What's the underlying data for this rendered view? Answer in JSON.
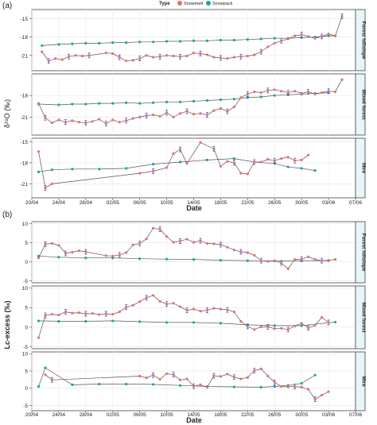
{
  "panel_labels": [
    "(a)",
    "(b)"
  ],
  "legend": {
    "title": "Type",
    "items": [
      {
        "label": "Snowmelt",
        "color": "#e4706e"
      },
      {
        "label": "Snowpack",
        "color": "#1aa3a3"
      }
    ]
  },
  "colors": {
    "line": "#555555",
    "snowmelt": "#e4706e",
    "snowpack": "#1aa3a3",
    "errorbar": "#3b3bd6",
    "strip": "#e6f6f9"
  },
  "chart_data": [
    {
      "type": "line",
      "ylabel": "δ¹⁸O (‰)",
      "xlabel": "Date",
      "x_ticks": [
        "20/04",
        "24/04",
        "28/04",
        "02/05",
        "06/05",
        "10/05",
        "14/05",
        "18/05",
        "22/05",
        "26/05",
        "30/05",
        "03/06",
        "07/06"
      ],
      "grid": true,
      "legend_position": "top",
      "facets": [
        {
          "name": "Forest hillslope",
          "ylim": [
            -23.5,
            -13.5
          ],
          "y_ticks": [
            -15,
            -18,
            -21
          ],
          "series": [
            {
              "name": "Snowpack",
              "x": [
                1.5,
                4,
                6,
                8,
                10,
                12,
                14,
                16,
                18,
                20,
                22,
                24,
                26,
                28,
                30,
                32,
                34,
                36,
                38,
                40,
                42,
                43,
                44,
                45
              ],
              "y": [
                -19.4,
                -19.2,
                -19.1,
                -19.0,
                -19.0,
                -18.9,
                -18.9,
                -18.8,
                -18.8,
                -18.7,
                -18.7,
                -18.6,
                -18.6,
                -18.5,
                -18.5,
                -18.4,
                -18.3,
                -18.2,
                -18.2,
                -18.1,
                -18.0,
                -17.9,
                -17.8,
                -17.8
              ]
            },
            {
              "name": "Snowmelt",
              "x": [
                1.5,
                2.5,
                3.5,
                4.5,
                5.5,
                6.5,
                7.5,
                8.5,
                11,
                12,
                13,
                14,
                15,
                16,
                17,
                18,
                19,
                20,
                21,
                22,
                23,
                24,
                25,
                26,
                27,
                28,
                29,
                30,
                31,
                32,
                33,
                34,
                35,
                36,
                37,
                38,
                39,
                40,
                41,
                42,
                43,
                44,
                45,
                46
              ],
              "y": [
                -20.4,
                -21.9,
                -21.5,
                -21.7,
                -21.2,
                -21.0,
                -21.1,
                -21.0,
                -20.6,
                -20.7,
                -21.3,
                -21.9,
                -21.8,
                -21.5,
                -21.0,
                -21.3,
                -21.2,
                -21.0,
                -21.1,
                -21.2,
                -21.1,
                -20.6,
                -20.7,
                -20.9,
                -21.3,
                -21.4,
                -21.5,
                -21.3,
                -21.2,
                -21.1,
                -20.9,
                -20.4,
                -19.6,
                -19.0,
                -18.6,
                -18.3,
                -17.8,
                -17.6,
                -17.9,
                -18.2,
                -17.9,
                -17.5,
                -17.8,
                -14.6
              ]
            }
          ]
        },
        {
          "name": "Mixed forest",
          "ylim": [
            -23.5,
            -15.0
          ],
          "y_ticks": [
            -18,
            -21
          ],
          "series": [
            {
              "name": "Snowpack",
              "x": [
                1,
                4,
                6,
                8,
                10,
                12,
                14,
                16,
                18,
                20,
                22,
                24,
                26,
                28,
                30,
                32,
                34,
                36,
                38,
                40,
                42,
                44
              ],
              "y": [
                -19.2,
                -19.3,
                -19.2,
                -19.2,
                -19.1,
                -19.1,
                -19.0,
                -19.1,
                -19.0,
                -18.9,
                -18.9,
                -18.8,
                -18.7,
                -18.6,
                -18.5,
                -18.3,
                -18.2,
                -18.0,
                -17.9,
                -17.8,
                -17.7,
                -17.6
              ]
            },
            {
              "name": "Snowmelt",
              "x": [
                1,
                2,
                3,
                4,
                5,
                6,
                7,
                8,
                9,
                10,
                11,
                12,
                13,
                14,
                15,
                16,
                17,
                18,
                19,
                20,
                21,
                22,
                23,
                24,
                25,
                26,
                27,
                28,
                29,
                30,
                31,
                32,
                33,
                34,
                35,
                36,
                37,
                38,
                39,
                40,
                41,
                42,
                43,
                44,
                45,
                46
              ],
              "y": [
                -19.1,
                -21.1,
                -21.8,
                -21.4,
                -21.7,
                -21.5,
                -21.7,
                -21.8,
                -21.6,
                -21.3,
                -21.9,
                -21.4,
                -21.7,
                -21.5,
                -21.2,
                -21.0,
                -20.8,
                -20.7,
                -20.9,
                -20.4,
                -21.0,
                -20.5,
                -20.2,
                -20.6,
                -20.5,
                -20.7,
                -20.1,
                -19.8,
                -20.2,
                -19.6,
                -18.3,
                -17.8,
                -17.5,
                -17.6,
                -17.3,
                -17.2,
                -17.4,
                -17.6,
                -17.4,
                -17.7,
                -17.5,
                -17.8,
                -17.6,
                -17.4,
                -17.5,
                -15.8
              ]
            }
          ]
        },
        {
          "name": "Mire",
          "ylim": [
            -23.0,
            -14.5
          ],
          "y_ticks": [
            -15,
            -18,
            -21
          ],
          "series": [
            {
              "name": "Snowpack",
              "x": [
                1,
                3,
                6,
                10,
                14,
                18,
                22,
                26,
                30,
                33,
                36,
                38,
                40,
                42
              ],
              "y": [
                -19.3,
                -19.0,
                -18.9,
                -18.9,
                -18.8,
                -18.2,
                -17.9,
                -17.6,
                -17.4,
                -17.9,
                -18.1,
                -18.6,
                -18.8,
                -19.1
              ]
            },
            {
              "name": "Snowmelt",
              "x": [
                1,
                2,
                3,
                16,
                18,
                20,
                21,
                22,
                23,
                25,
                27,
                28,
                29,
                30,
                31,
                32,
                33,
                34,
                35,
                36,
                37,
                38,
                39,
                40,
                41
              ],
              "y": [
                -16.4,
                -21.6,
                -21.0,
                -19.5,
                -19.2,
                -18.7,
                -16.7,
                -16.1,
                -18.1,
                -15.1,
                -16.0,
                -18.5,
                -17.8,
                -18.0,
                -19.5,
                -19.6,
                -17.9,
                -17.9,
                -17.5,
                -17.7,
                -17.4,
                -17.2,
                -17.7,
                -17.6,
                -16.9
              ]
            }
          ]
        }
      ]
    },
    {
      "type": "line",
      "ylabel": "Lc-excess (‰)",
      "xlabel": "Date",
      "x_ticks": [
        "20/04",
        "24/04",
        "28/04",
        "02/05",
        "06/05",
        "10/05",
        "14/05",
        "18/05",
        "22/05",
        "26/05",
        "30/05",
        "03/06",
        "07/06"
      ],
      "grid": true,
      "facets": [
        {
          "name": "Forest hillslope",
          "ylim": [
            -5.5,
            10.5
          ],
          "y_ticks": [
            10,
            5,
            0,
            -5
          ],
          "series": [
            {
              "name": "Snowpack",
              "x": [
                1,
                4,
                8,
                12,
                16,
                20,
                24,
                28,
                32,
                36,
                40,
                44
              ],
              "y": [
                1.5,
                1.2,
                1.0,
                1.0,
                0.8,
                0.7,
                0.6,
                0.4,
                0.3,
                0.2,
                0.3,
                0.3
              ]
            },
            {
              "name": "Snowmelt",
              "x": [
                1,
                2,
                3,
                4,
                5,
                6,
                7,
                8,
                11,
                12,
                13,
                14,
                15,
                16,
                17,
                18,
                19,
                20,
                21,
                22,
                23,
                24,
                25,
                26,
                27,
                28,
                29,
                30,
                31,
                32,
                33,
                34,
                35,
                36,
                37,
                38,
                39,
                40,
                41,
                42,
                43,
                44,
                45
              ],
              "y": [
                1.0,
                4.6,
                4.8,
                4.3,
                2.2,
                2.5,
                2.9,
                2.6,
                1.6,
                1.5,
                1.8,
                2.4,
                4.4,
                4.8,
                6.0,
                8.8,
                8.5,
                6.6,
                5.1,
                5.4,
                5.9,
                5.1,
                5.5,
                4.8,
                4.7,
                4.5,
                3.8,
                3.1,
                2.6,
                2.4,
                1.7,
                0.3,
                0.1,
                0.3,
                -0.3,
                -1.8,
                0.6,
                0.7,
                1.3,
                0.6,
                0.3,
                0.4,
                0.6
              ]
            }
          ]
        },
        {
          "name": "Mixed forest",
          "ylim": [
            -5.5,
            10.5
          ],
          "y_ticks": [
            10,
            5,
            0,
            -5
          ],
          "series": [
            {
              "name": "Snowpack",
              "x": [
                1,
                4,
                8,
                12,
                16,
                20,
                24,
                28,
                32,
                36,
                40,
                45
              ],
              "y": [
                1.6,
                1.5,
                1.5,
                1.6,
                1.4,
                1.2,
                1.2,
                1.0,
                0.6,
                0.4,
                0.4,
                1.3
              ]
            },
            {
              "name": "Snowmelt",
              "x": [
                1,
                2,
                3,
                4,
                5,
                6,
                7,
                8,
                9,
                10,
                11,
                12,
                13,
                14,
                15,
                16,
                17,
                18,
                19,
                20,
                21,
                22,
                23,
                24,
                25,
                26,
                27,
                28,
                29,
                30,
                31,
                32,
                33,
                34,
                35,
                36,
                37,
                38,
                39,
                40,
                41,
                42,
                43,
                44
              ],
              "y": [
                -2.7,
                3.0,
                3.3,
                3.1,
                3.9,
                3.6,
                3.7,
                3.4,
                3.5,
                3.2,
                3.4,
                3.3,
                3.9,
                5.1,
                5.6,
                6.5,
                7.5,
                8.1,
                6.6,
                5.9,
                6.1,
                5.2,
                4.3,
                4.6,
                4.1,
                4.3,
                4.8,
                4.6,
                4.4,
                3.9,
                1.5,
                0.2,
                -0.6,
                0.1,
                0.1,
                -0.4,
                -0.3,
                -0.6,
                0.3,
                1.0,
                -0.2,
                0.5,
                2.5,
                1.2
              ]
            }
          ]
        },
        {
          "name": "Mire",
          "ylim": [
            -6.5,
            10.5
          ],
          "y_ticks": [
            10,
            5,
            0,
            -5
          ],
          "series": [
            {
              "name": "Snowpack",
              "x": [
                1,
                2,
                6,
                10,
                14,
                18,
                22,
                26,
                30,
                34,
                36,
                38,
                40,
                42
              ],
              "y": [
                0.5,
                5.9,
                1.0,
                1.2,
                1.2,
                1.1,
                0.8,
                0.5,
                0.4,
                0.3,
                0.5,
                0.8,
                1.4,
                3.8
              ]
            },
            {
              "name": "Snowmelt",
              "x": [
                2,
                3,
                16,
                17,
                18,
                19,
                20,
                21,
                22,
                23,
                24,
                25,
                26,
                27,
                28,
                29,
                30,
                31,
                32,
                33,
                34,
                35,
                36,
                37,
                38,
                39,
                40,
                41,
                42,
                43,
                44
              ],
              "y": [
                3.9,
                2.4,
                3.5,
                3.0,
                3.8,
                2.6,
                4.2,
                3.9,
                2.4,
                2.7,
                0.6,
                1.0,
                0.3,
                3.6,
                3.4,
                4.1,
                3.2,
                2.7,
                3.1,
                5.1,
                5.6,
                3.5,
                1.7,
                0.5,
                0.4,
                0.5,
                0.3,
                -0.3,
                -3.2,
                -2.0,
                -1.0
              ]
            }
          ]
        }
      ]
    }
  ]
}
